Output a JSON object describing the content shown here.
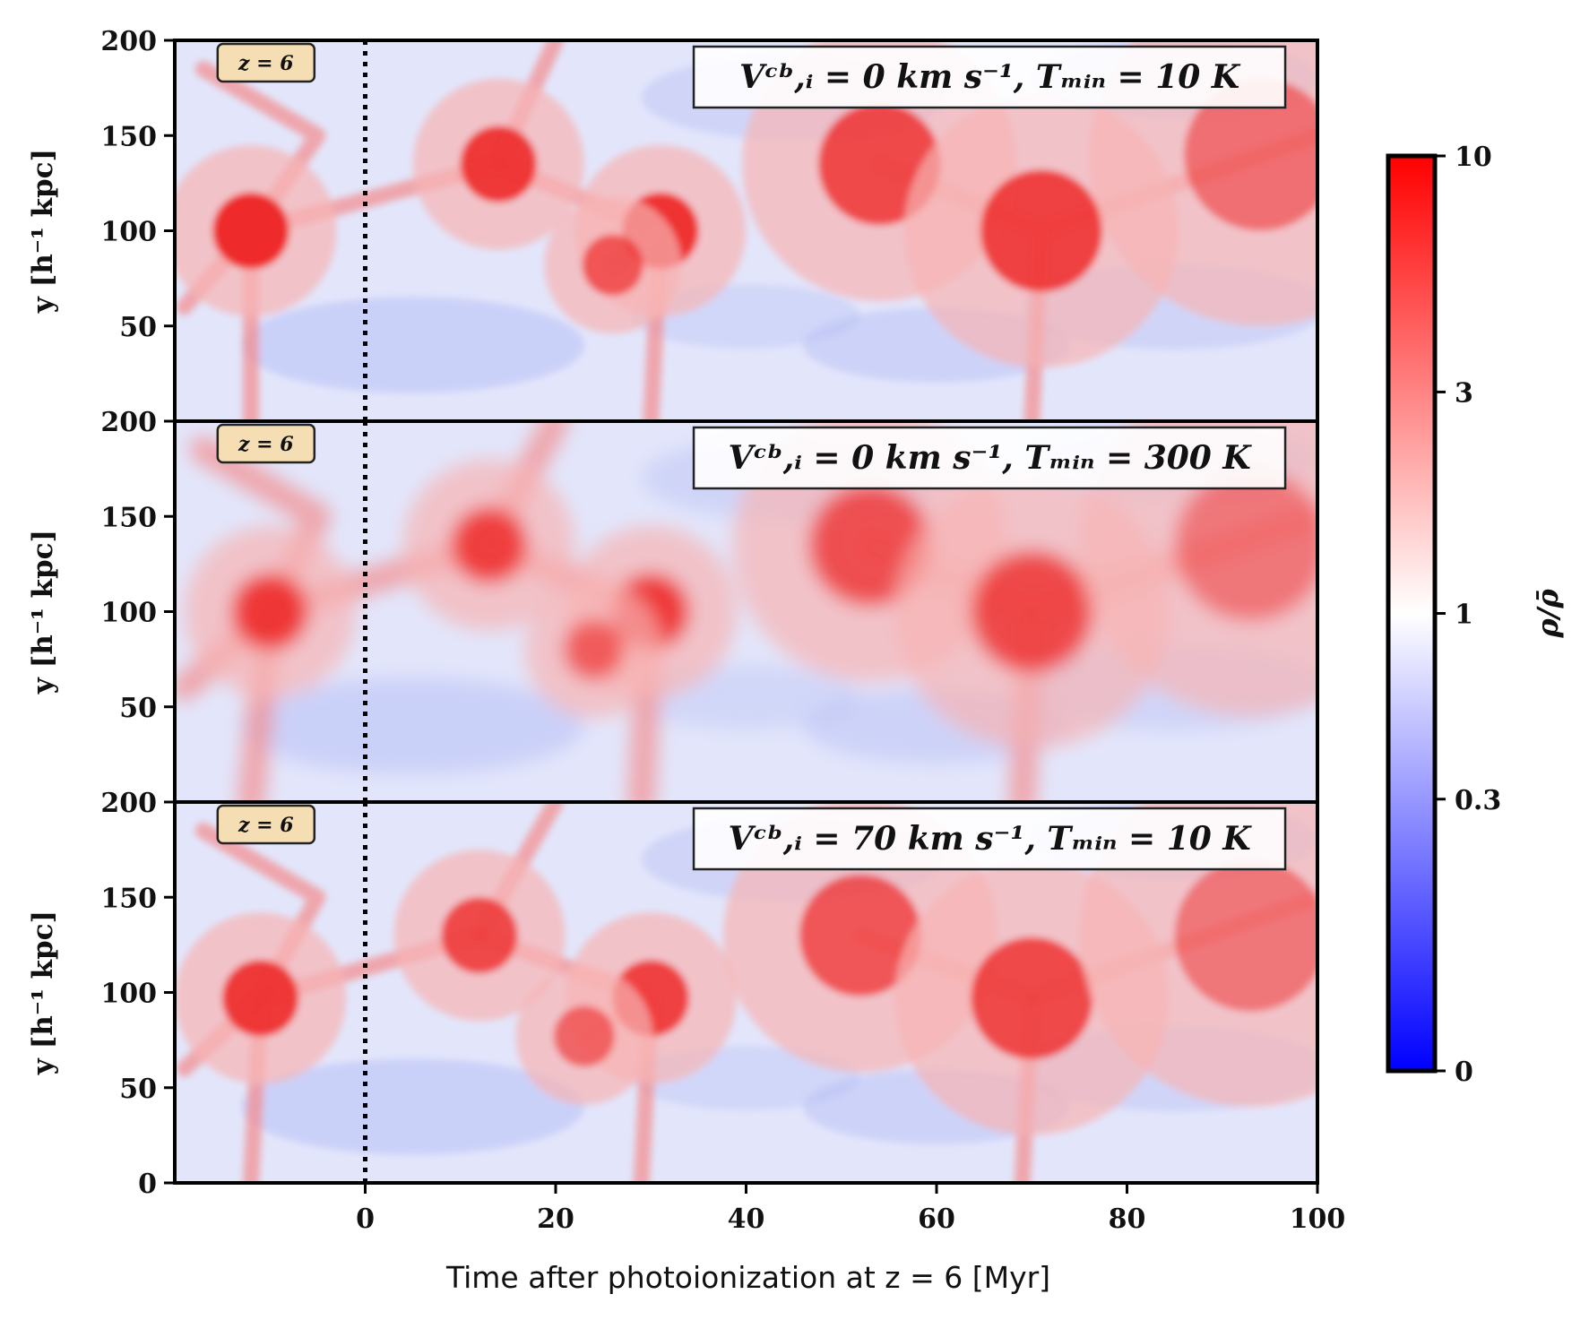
{
  "chart_data": {
    "type": "heatmap",
    "xlabel": "Time after photoionization at z = 6 [Myr]",
    "x_ticks": [
      "0",
      "20",
      "40",
      "60",
      "80",
      "100"
    ],
    "x_tick_values": [
      0,
      20,
      40,
      60,
      80,
      100
    ],
    "xlim": [
      -20,
      100
    ],
    "ylabel": "y [h⁻¹ kpc]",
    "y_ticks": [
      "0",
      "50",
      "100",
      "150",
      "200"
    ],
    "ylim": [
      0,
      200
    ],
    "vline_x": 0,
    "colormap": {
      "name": "bwr",
      "low": "#0000ff",
      "mid": "#ffffff",
      "high": "#ff0000"
    },
    "colorbar": {
      "label": "ρ/ρ̄",
      "ticks": [
        "10",
        "3",
        "1",
        "0.3",
        "0"
      ],
      "tick_values": [
        10,
        3,
        1,
        0.3,
        0
      ]
    },
    "panels": [
      {
        "title": "Vᶜᵇ,ᵢ = 0 km s⁻¹, Tₘᵢₙ = 10 K",
        "badge": "z = 6",
        "y_tick_labels": [
          "200",
          "150",
          "100",
          "50"
        ],
        "structure": "sharp",
        "overdense_peaks": [
          {
            "x": -12,
            "y": 100,
            "amp": 1.0,
            "r": 5
          },
          {
            "x": 14,
            "y": 135,
            "amp": 0.9,
            "r": 5
          },
          {
            "x": 31,
            "y": 100,
            "amp": 0.95,
            "r": 5
          },
          {
            "x": 54,
            "y": 135,
            "amp": 0.8,
            "r": 8
          },
          {
            "x": 71,
            "y": 100,
            "amp": 0.85,
            "r": 8
          },
          {
            "x": 26,
            "y": 82,
            "amp": 0.7,
            "r": 4
          },
          {
            "x": 94,
            "y": 140,
            "amp": 0.55,
            "r": 10
          }
        ]
      },
      {
        "title": "Vᶜᵇ,ᵢ = 0 km s⁻¹, Tₘᵢₙ = 300 K",
        "badge": "z = 6",
        "y_tick_labels": [
          "200",
          "150",
          "100",
          "50"
        ],
        "structure": "smooth",
        "overdense_peaks": [
          {
            "x": -10,
            "y": 100,
            "amp": 0.9,
            "r": 5
          },
          {
            "x": 13,
            "y": 135,
            "amp": 0.85,
            "r": 5
          },
          {
            "x": 30,
            "y": 100,
            "amp": 0.9,
            "r": 5
          },
          {
            "x": 53,
            "y": 135,
            "amp": 0.75,
            "r": 8
          },
          {
            "x": 70,
            "y": 100,
            "amp": 0.8,
            "r": 8
          },
          {
            "x": 24,
            "y": 80,
            "amp": 0.65,
            "r": 4
          },
          {
            "x": 93,
            "y": 135,
            "amp": 0.5,
            "r": 10
          }
        ]
      },
      {
        "title": "Vᶜᵇ,ᵢ = 70 km s⁻¹, Tₘᵢₙ = 10 K",
        "badge": "z = 6",
        "y_tick_labels": [
          "200",
          "150",
          "100",
          "50",
          "0"
        ],
        "structure": "sharp",
        "overdense_peaks": [
          {
            "x": -11,
            "y": 97,
            "amp": 0.9,
            "r": 5
          },
          {
            "x": 12,
            "y": 130,
            "amp": 0.8,
            "r": 5
          },
          {
            "x": 30,
            "y": 97,
            "amp": 0.85,
            "r": 5
          },
          {
            "x": 52,
            "y": 130,
            "amp": 0.7,
            "r": 8
          },
          {
            "x": 70,
            "y": 97,
            "amp": 0.8,
            "r": 8
          },
          {
            "x": 23,
            "y": 77,
            "amp": 0.6,
            "r": 4
          },
          {
            "x": 93,
            "y": 130,
            "amp": 0.5,
            "r": 10
          }
        ]
      }
    ]
  }
}
